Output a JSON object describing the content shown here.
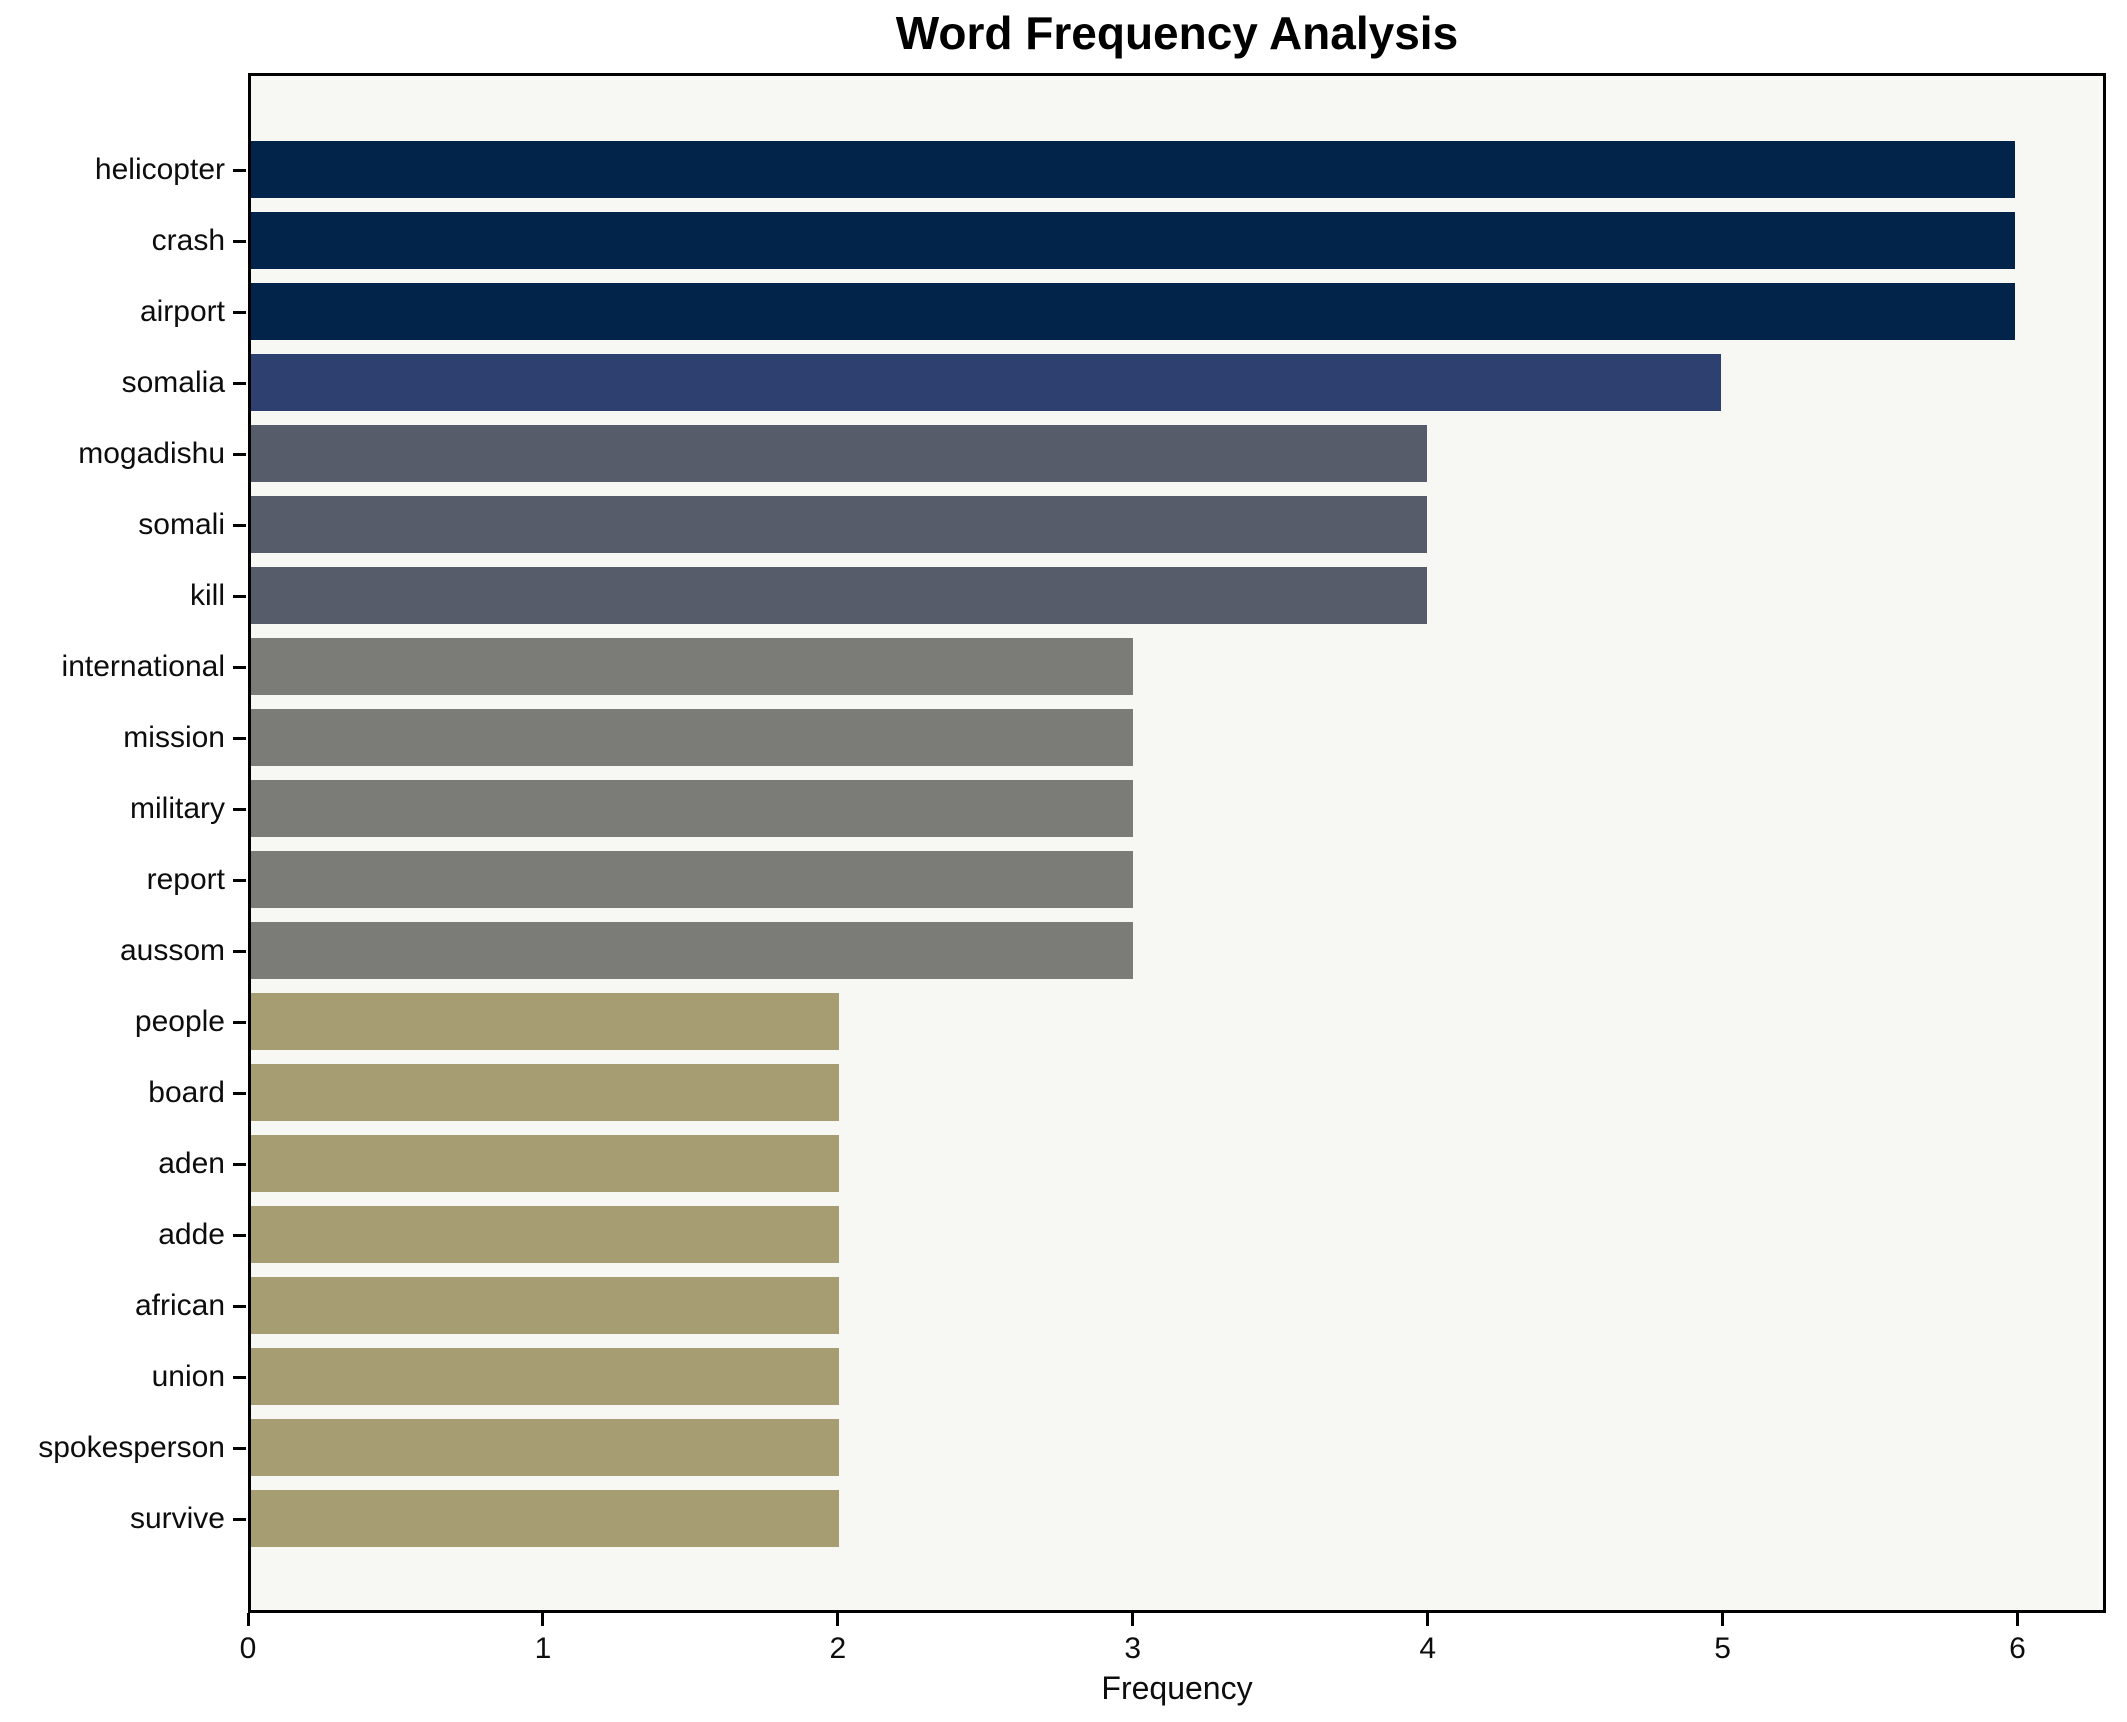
{
  "chart_data": {
    "type": "bar",
    "orientation": "horizontal",
    "title": "Word Frequency Analysis",
    "xlabel": "Frequency",
    "ylabel": "",
    "categories": [
      "helicopter",
      "crash",
      "airport",
      "somalia",
      "mogadishu",
      "somali",
      "kill",
      "international",
      "mission",
      "military",
      "report",
      "aussom",
      "people",
      "board",
      "aden",
      "adde",
      "african",
      "union",
      "spokesperson",
      "survive"
    ],
    "values": [
      6,
      6,
      6,
      5,
      4,
      4,
      4,
      3,
      3,
      3,
      3,
      3,
      2,
      2,
      2,
      2,
      2,
      2,
      2,
      2
    ],
    "bar_colors": [
      "#02234a",
      "#02234a",
      "#02234a",
      "#2e406f",
      "#565c6a",
      "#565c6a",
      "#565c6a",
      "#7b7b77",
      "#7b7b77",
      "#7b7b77",
      "#7b7b77",
      "#7b7b77",
      "#a69d72",
      "#a69d72",
      "#a69d72",
      "#a69d72",
      "#a69d72",
      "#a69d72",
      "#a69d72",
      "#a69d72"
    ],
    "x_ticks": [
      0,
      1,
      2,
      3,
      4,
      5,
      6
    ],
    "xlim": [
      0,
      6.3
    ],
    "grid": false,
    "legend_position": "none",
    "plot_background": "#f7f7f4",
    "figure_background": "#ffffff",
    "spine_color": "#000000"
  }
}
